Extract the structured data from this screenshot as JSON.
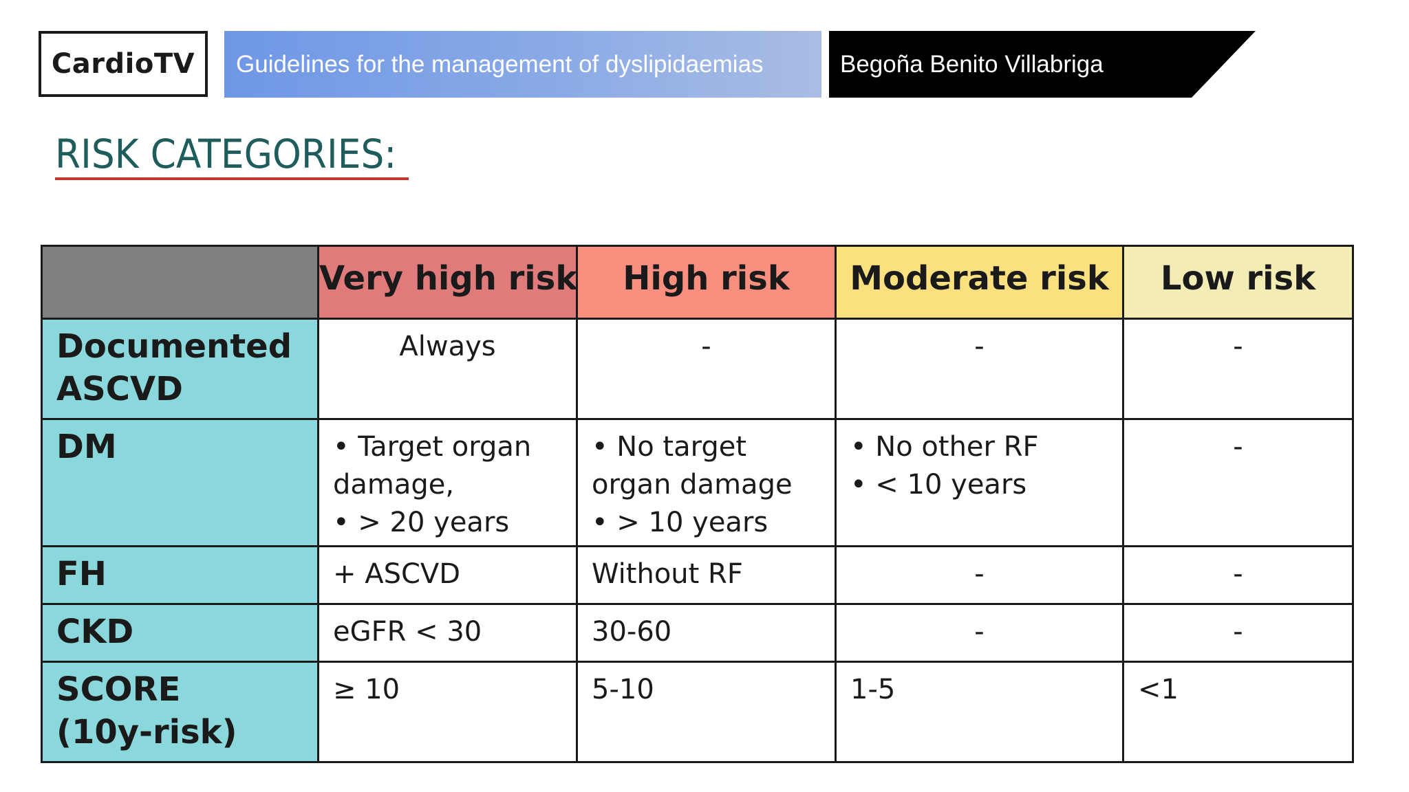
{
  "header": {
    "logo_text": "CardioTV",
    "title": "Guidelines for the management of dyslipidaemias",
    "author": "Begoña Benito Villabriga"
  },
  "slide": {
    "title": "RISK CATEGORIES:"
  },
  "table": {
    "columns": [
      "Very high risk",
      "High risk",
      "Moderate risk",
      "Low risk"
    ],
    "column_colors": [
      "#e07b7b",
      "#f98f7f",
      "#fbe07f",
      "#f3ecb5"
    ],
    "rows": [
      {
        "label": [
          "Documented",
          "ASCVD"
        ],
        "cells": [
          [
            "Always"
          ],
          [
            "-"
          ],
          [
            "-"
          ],
          [
            "-"
          ]
        ]
      },
      {
        "label": [
          "DM"
        ],
        "cells": [
          [
            "• Target organ",
            "damage,",
            "• > 20 years"
          ],
          [
            "• No target",
            "organ damage",
            "• > 10 years"
          ],
          [
            "• No other RF",
            "• < 10 years"
          ],
          [
            "-"
          ]
        ]
      },
      {
        "label": [
          "FH"
        ],
        "cells": [
          [
            "+ ASCVD"
          ],
          [
            "Without RF"
          ],
          [
            "-"
          ],
          [
            "-"
          ]
        ]
      },
      {
        "label": [
          "CKD"
        ],
        "cells": [
          [
            "eGFR < 30"
          ],
          [
            "30-60"
          ],
          [
            "-"
          ],
          [
            "-"
          ]
        ]
      },
      {
        "label": [
          "SCORE",
          "(10y-risk)"
        ],
        "cells": [
          [
            "≥ 10"
          ],
          [
            "5-10"
          ],
          [
            "1-5"
          ],
          [
            "<1"
          ]
        ]
      }
    ]
  }
}
